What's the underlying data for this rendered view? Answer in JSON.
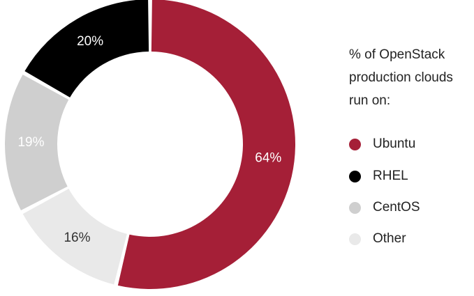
{
  "chart_data": {
    "type": "pie",
    "variant": "donut",
    "title": "% of OpenStack production clouds run on:",
    "title_lines": [
      "% of OpenStack",
      "production clouds",
      "run on:"
    ],
    "categories": [
      "Ubuntu",
      "Other",
      "CentOS",
      "RHEL"
    ],
    "values": [
      64,
      16,
      19,
      20
    ],
    "value_labels": [
      "64%",
      "16%",
      "19%",
      "20%"
    ],
    "colors": [
      "#a51f37",
      "#e9e9e9",
      "#cfcfcf",
      "#000000"
    ],
    "label_colors": [
      "#ffffff",
      "#333333",
      "#ffffff",
      "#ffffff"
    ],
    "legend": [
      {
        "label": "Ubuntu",
        "color": "#a51f37"
      },
      {
        "label": "RHEL",
        "color": "#000000"
      },
      {
        "label": "CentOS",
        "color": "#cfcfcf"
      },
      {
        "label": "Other",
        "color": "#e9e9e9"
      }
    ],
    "legend_position": "right"
  }
}
